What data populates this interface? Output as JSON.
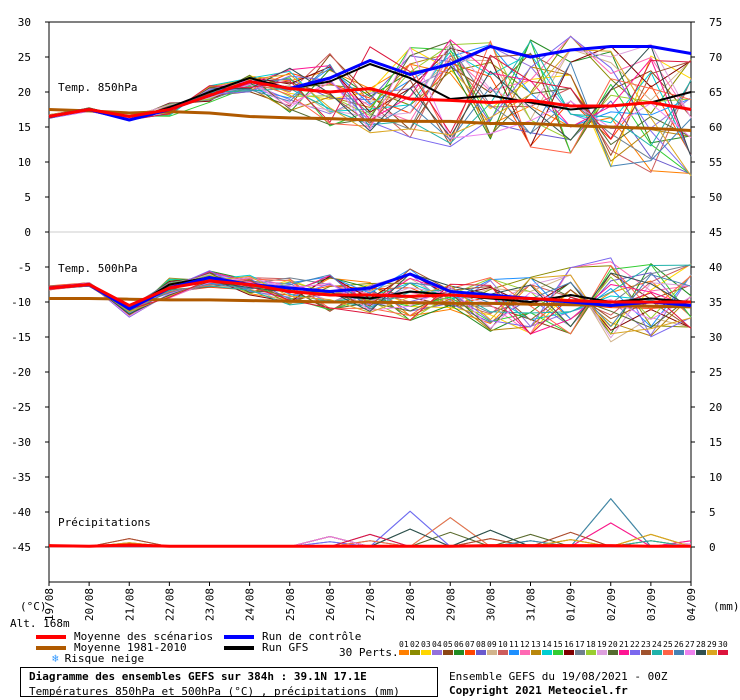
{
  "chart_data": {
    "type": "line",
    "x_dates": [
      "19/08",
      "20/08",
      "21/08",
      "22/08",
      "23/08",
      "24/08",
      "25/08",
      "26/08",
      "27/08",
      "28/08",
      "29/08",
      "30/08",
      "31/08",
      "01/09",
      "02/09",
      "03/09",
      "04/09"
    ],
    "left_axis_label": "(°C)",
    "right_axis_label": "(mm)",
    "left_ticks": [
      30,
      25,
      20,
      15,
      10,
      5,
      0,
      -5,
      -10,
      -15,
      -20,
      -25,
      -30,
      -35,
      -40,
      -45
    ],
    "right_ticks_t850": [
      75,
      70,
      65,
      60,
      55,
      50,
      45
    ],
    "right_ticks_t500": [
      40,
      35,
      30,
      25,
      20,
      15,
      10,
      5,
      0
    ],
    "panels": {
      "t850": {
        "label": "Temp. 850hPa",
        "mean": [
          16.5,
          17.5,
          16.5,
          17.5,
          19.5,
          21.5,
          20.5,
          20.0,
          20.5,
          19.0,
          18.8,
          18.5,
          18.8,
          18.0,
          18.0,
          18.5,
          17.5
        ],
        "climatology": [
          17.5,
          17.3,
          17.0,
          17.2,
          17.0,
          16.5,
          16.3,
          16.2,
          16.0,
          15.8,
          15.8,
          15.5,
          15.5,
          15.2,
          15.0,
          14.8,
          14.5
        ],
        "control": [
          16.5,
          17.5,
          16.0,
          17.5,
          19.5,
          21.5,
          20.5,
          22.0,
          24.5,
          22.5,
          24.0,
          26.5,
          25.0,
          26.0,
          26.5,
          26.5,
          25.5
        ],
        "gfs": [
          16.5,
          17.5,
          16.0,
          17.8,
          20.0,
          22.0,
          20.5,
          21.5,
          24.0,
          22.0,
          19.0,
          19.5,
          18.5,
          17.5,
          18.0,
          18.5,
          20.0
        ],
        "ens_min": [
          15.5,
          16.5,
          15.0,
          16.5,
          18.5,
          20.0,
          17.0,
          15.0,
          14.0,
          13.0,
          12.0,
          12.0,
          11.0,
          9.5,
          9.0,
          8.5,
          8.0
        ],
        "ens_max": [
          17.5,
          18.5,
          17.5,
          18.5,
          21.0,
          22.5,
          23.5,
          25.5,
          26.5,
          27.0,
          27.5,
          27.5,
          28.0,
          28.0,
          27.0,
          27.0,
          27.0
        ]
      },
      "t500": {
        "label": "Temp. 500hPa",
        "mean": [
          -8.0,
          -7.5,
          -10.5,
          -8.0,
          -7.0,
          -7.5,
          -8.5,
          -9.0,
          -9.0,
          -9.2,
          -9.0,
          -9.3,
          -9.5,
          -9.8,
          -10.0,
          -10.0,
          -10.0
        ],
        "climatology": [
          -9.5,
          -9.5,
          -9.6,
          -9.7,
          -9.7,
          -9.8,
          -9.9,
          -10.0,
          -10.0,
          -10.1,
          -10.2,
          -10.2,
          -10.3,
          -10.4,
          -10.5,
          -10.6,
          -10.7
        ],
        "control": [
          -8.0,
          -7.5,
          -11.0,
          -8.0,
          -6.5,
          -7.5,
          -8.0,
          -8.5,
          -8.0,
          -6.0,
          -8.5,
          -9.0,
          -9.5,
          -10.0,
          -10.5,
          -10.0,
          -10.5
        ],
        "gfs": [
          -8.0,
          -7.5,
          -11.0,
          -7.5,
          -6.5,
          -7.5,
          -8.5,
          -9.0,
          -9.5,
          -8.5,
          -9.0,
          -9.5,
          -10.0,
          -9.0,
          -10.0,
          -9.5,
          -10.0
        ],
        "ens_min": [
          -9.0,
          -8.5,
          -14.0,
          -9.5,
          -8.0,
          -9.0,
          -10.5,
          -12.0,
          -14.0,
          -13.0,
          -13.5,
          -14.5,
          -15.0,
          -15.5,
          -16.0,
          -15.5,
          -15.0
        ],
        "ens_max": [
          -7.0,
          -6.5,
          -9.0,
          -6.5,
          -5.5,
          -6.0,
          -6.5,
          -6.0,
          -5.5,
          -5.0,
          -5.5,
          -6.0,
          -6.0,
          -5.0,
          -3.5,
          -4.0,
          -4.5
        ]
      },
      "precip": {
        "label": "Précipitations",
        "mean": [
          0.2,
          0.1,
          0.3,
          0.1,
          0.1,
          0.1,
          0.1,
          0.1,
          0.1,
          0.1,
          0.1,
          0.2,
          0.2,
          0.2,
          0.2,
          0.1,
          0.1
        ],
        "ens_max": [
          0.5,
          0.3,
          2.0,
          0.2,
          0.2,
          0.3,
          0.3,
          2.5,
          3.0,
          8.5,
          7.0,
          4.0,
          3.0,
          3.5,
          11.5,
          3.0,
          1.5
        ]
      }
    },
    "legend": [
      {
        "label": "Moyenne des scénarios",
        "color": "#ff0000"
      },
      {
        "label": "Moyenne 1981-2010",
        "color": "#b05a00"
      },
      {
        "label": "Risque neige",
        "color": "#3399ff"
      },
      {
        "label": "Run de contrôle",
        "color": "#0000ff"
      },
      {
        "label": "Run GFS",
        "color": "#000000"
      }
    ],
    "perturbation_colors": [
      "#ff7f00",
      "#8b8b00",
      "#ffd700",
      "#9370db",
      "#8b4513",
      "#228b22",
      "#ff4500",
      "#6a5acd",
      "#d2b48c",
      "#cd5c5c",
      "#1e90ff",
      "#ff69b4",
      "#b8860b",
      "#00ced1",
      "#32cd32",
      "#800000",
      "#708090",
      "#9acd32",
      "#dda0dd",
      "#556b2f",
      "#ff1493",
      "#7b68ee",
      "#a0522d",
      "#20b2aa",
      "#ff6347",
      "#4682b4",
      "#ee82ee",
      "#2f4f4f",
      "#daa520",
      "#dc143c"
    ]
  },
  "labels": {
    "alt": "Alt. 168m",
    "perts": "30 Perts.",
    "pert_numbers": [
      "01",
      "02",
      "03",
      "04",
      "05",
      "06",
      "07",
      "08",
      "09",
      "10",
      "11",
      "12",
      "13",
      "14",
      "15",
      "16",
      "17",
      "18",
      "19",
      "20",
      "21",
      "22",
      "23",
      "24",
      "25",
      "26",
      "27",
      "28",
      "29",
      "30"
    ],
    "footer_title": "Diagramme des ensembles GEFS sur 384h : 39.1N 17.1E",
    "footer_sub": "Températures 850hPa et 500hPa (°C) , précipitations (mm)",
    "run_info": "Ensemble GEFS du 19/08/2021 - 00Z",
    "copyright": "Copyright 2021 Meteociel.fr"
  }
}
